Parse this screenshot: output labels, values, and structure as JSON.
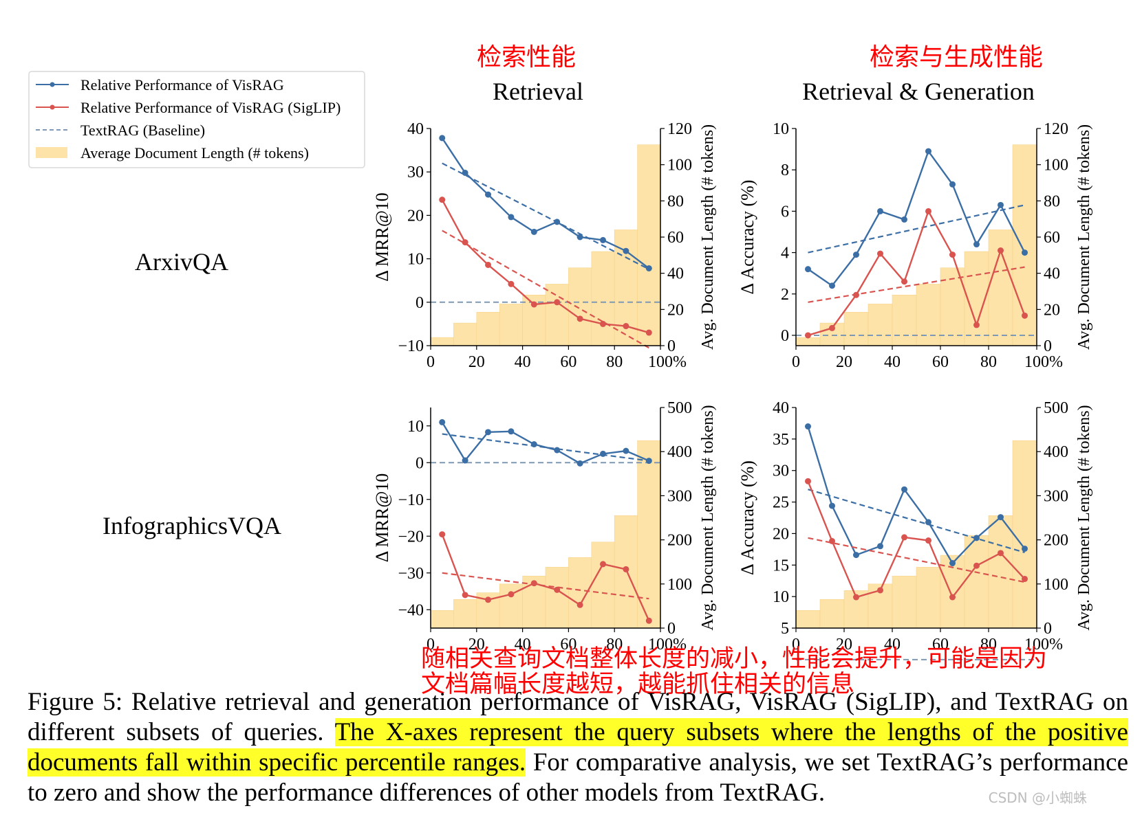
{
  "annotations": {
    "retrieval_zh": "检索性能",
    "generation_zh": "检索与生成性能",
    "note_line1": "随相关查询文档整体长度的减小，性能会提升，可能是因为",
    "note_line2": "文档篇幅长度越短，越能抓住相关的信息"
  },
  "column_titles": {
    "retrieval": "Retrieval",
    "generation": "Retrieval & Generation"
  },
  "row_labels": {
    "top": "ArxivQA",
    "bottom": "InfographicsVQA"
  },
  "legend": [
    {
      "label": "Relative Performance of VisRAG",
      "color": "#3b6ea5"
    },
    {
      "label": "Relative Performance of VisRAG (SigLIP)",
      "color": "#d9534f"
    },
    {
      "label": "TextRAG (Baseline)",
      "color": "#7f98b3"
    },
    {
      "label": "Average Document Length (# tokens)",
      "color": "#fde3a7"
    }
  ],
  "caption": {
    "part1": "Figure 5:  Relative retrieval and generation performance of VisRAG, VisRAG (SigLIP), and TextRAG on different subsets of queries. ",
    "highlight": "The X-axes represent the query subsets where the lengths of the positive documents fall within specific percentile ranges.",
    "part2": " For comparative analysis, we set TextRAG’s performance to zero and show the performance differences of other models from TextRAG."
  },
  "watermark": "CSDN @小蜘蛛",
  "colors": {
    "visrag": "#3b6ea5",
    "siglip": "#d9534f",
    "baseline": "#7f98b3",
    "bars": "#fde3a7",
    "annotation": "#ff0000"
  },
  "chart_data": [
    {
      "type": "line",
      "dataset": "ArxivQA",
      "task": "Retrieval",
      "x": [
        5,
        15,
        25,
        35,
        45,
        55,
        65,
        75,
        85,
        95
      ],
      "xticks": [
        "0",
        "20",
        "40",
        "60",
        "80",
        "100%"
      ],
      "xlim": [
        0,
        100
      ],
      "ylabel": "Δ MRR@10",
      "ylim": [
        -10,
        40
      ],
      "yticks": [
        "−10",
        "0",
        "10",
        "20",
        "30",
        "40"
      ],
      "y2label": "Avg. Document Length (# tokens)",
      "y2lim": [
        0,
        120
      ],
      "y2ticks": [
        "0",
        "20",
        "40",
        "60",
        "80",
        "100",
        "120"
      ],
      "series": [
        {
          "name": "Relative Performance of VisRAG",
          "values": [
            37.8,
            29.8,
            24.8,
            19.6,
            16.2,
            18.5,
            15.0,
            14.3,
            11.8,
            7.8
          ],
          "trend": [
            32.0,
            7.6
          ]
        },
        {
          "name": "Relative Performance of VisRAG (SigLIP)",
          "values": [
            23.6,
            13.8,
            8.6,
            4.2,
            -0.5,
            0.0,
            -3.8,
            -5.0,
            -5.5,
            -7.0
          ],
          "trend": [
            16.5,
            -10.5
          ]
        }
      ],
      "bars": [
        4.5,
        12.5,
        18.5,
        23,
        28,
        34,
        43,
        52,
        64,
        111
      ]
    },
    {
      "type": "line",
      "dataset": "ArxivQA",
      "task": "Retrieval & Generation",
      "x": [
        5,
        15,
        25,
        35,
        45,
        55,
        65,
        75,
        85,
        95
      ],
      "xticks": [
        "0",
        "20",
        "40",
        "60",
        "80",
        "100%"
      ],
      "xlim": [
        0,
        100
      ],
      "ylabel": "Δ Accuracy (%)",
      "ylim": [
        -0.5,
        10
      ],
      "yticks": [
        "0",
        "2",
        "4",
        "6",
        "8",
        "10"
      ],
      "y2label": "Avg. Document Length (# tokens)",
      "y2lim": [
        0,
        120
      ],
      "y2ticks": [
        "0",
        "20",
        "40",
        "60",
        "80",
        "100",
        "120"
      ],
      "series": [
        {
          "name": "Relative Performance of VisRAG",
          "values": [
            3.2,
            2.4,
            3.9,
            6.0,
            5.6,
            8.9,
            7.3,
            4.4,
            6.3,
            4.0
          ],
          "trend": [
            4.0,
            6.3
          ]
        },
        {
          "name": "Relative Performance of VisRAG (SigLIP)",
          "values": [
            0.0,
            0.35,
            1.95,
            3.95,
            2.6,
            6.0,
            3.9,
            0.5,
            4.1,
            0.95
          ],
          "trend": [
            1.6,
            3.3
          ]
        }
      ],
      "bars": [
        4.5,
        12.5,
        18.5,
        23,
        28,
        34,
        43,
        52,
        64,
        111
      ]
    },
    {
      "type": "line",
      "dataset": "InfographicsVQA",
      "task": "Retrieval",
      "x": [
        5,
        15,
        25,
        35,
        45,
        55,
        65,
        75,
        85,
        95
      ],
      "xticks": [
        "0",
        "20",
        "40",
        "60",
        "80",
        "100%"
      ],
      "xlim": [
        0,
        100
      ],
      "ylabel": "Δ MRR@10",
      "ylim": [
        -45,
        15
      ],
      "yticks": [
        "−40",
        "−30",
        "−20",
        "−10",
        "0",
        "10"
      ],
      "y2label": "Avg. Document Length (# tokens)",
      "y2lim": [
        0,
        500
      ],
      "y2ticks": [
        "0",
        "100",
        "200",
        "300",
        "400",
        "500"
      ],
      "series": [
        {
          "name": "Relative Performance of VisRAG",
          "values": [
            11.0,
            0.6,
            8.3,
            8.5,
            5.0,
            3.4,
            -0.2,
            2.4,
            3.2,
            0.5
          ],
          "trend": [
            7.8,
            0.5
          ]
        },
        {
          "name": "Relative Performance of VisRAG (SigLIP)",
          "values": [
            -19.5,
            -36.0,
            -37.3,
            -35.8,
            -32.8,
            -34.6,
            -38.7,
            -27.6,
            -29.0,
            -43.0
          ],
          "trend": [
            -30.0,
            -37.0
          ]
        }
      ],
      "bars": [
        40,
        65,
        80,
        100,
        118,
        138,
        160,
        195,
        255,
        425
      ]
    },
    {
      "type": "line",
      "dataset": "InfographicsVQA",
      "task": "Retrieval & Generation",
      "x": [
        5,
        15,
        25,
        35,
        45,
        55,
        65,
        75,
        85,
        95
      ],
      "xticks": [
        "0",
        "20",
        "40",
        "60",
        "80",
        "100%"
      ],
      "xlim": [
        0,
        100
      ],
      "ylabel": "Δ Accuracy (%)",
      "ylim": [
        5,
        40
      ],
      "yticks": [
        "5",
        "10",
        "15",
        "20",
        "25",
        "30",
        "35",
        "40"
      ],
      "y2label": "Avg. Document Length (# tokens)",
      "y2lim": [
        0,
        500
      ],
      "y2ticks": [
        "0",
        "100",
        "200",
        "300",
        "400",
        "500"
      ],
      "series": [
        {
          "name": "Relative Performance of VisRAG",
          "values": [
            37.0,
            24.4,
            16.6,
            18.0,
            27.0,
            21.8,
            15.3,
            19.3,
            22.6,
            17.6
          ],
          "trend": [
            27.0,
            17.0
          ]
        },
        {
          "name": "Relative Performance of VisRAG (SigLIP)",
          "values": [
            28.3,
            18.8,
            9.9,
            11.0,
            19.4,
            18.9,
            9.9,
            14.9,
            16.9,
            12.8
          ],
          "trend": [
            19.3,
            12.3
          ]
        }
      ],
      "bars": [
        40,
        65,
        85,
        100,
        118,
        138,
        165,
        210,
        255,
        425
      ]
    }
  ]
}
